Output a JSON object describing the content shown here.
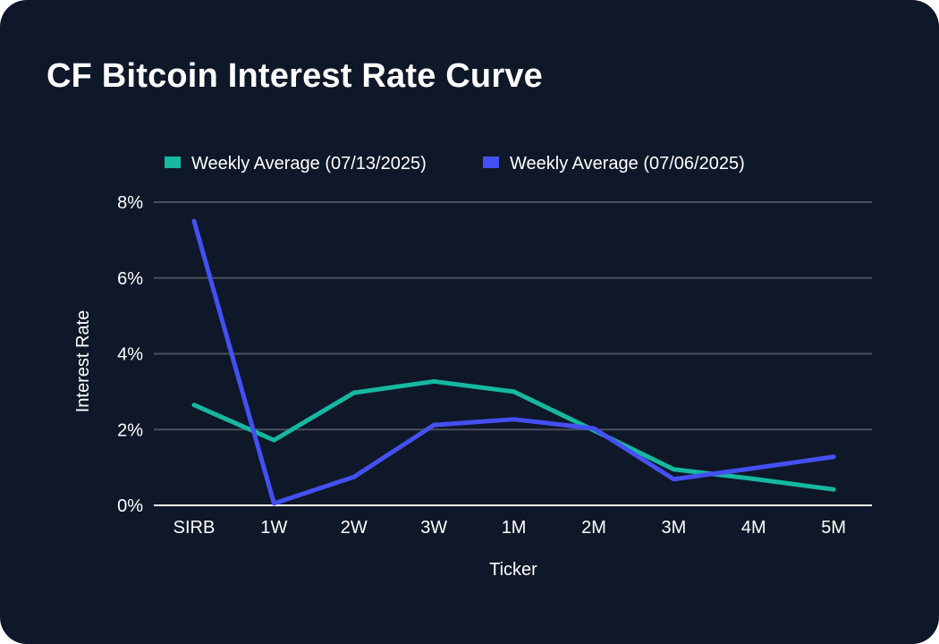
{
  "page": {
    "background": "#0f1829"
  },
  "chart_data": {
    "type": "line",
    "title": "CF Bitcoin Interest Rate Curve",
    "xlabel": "Ticker",
    "ylabel": "Interest Rate",
    "categories": [
      "SIRB",
      "1W",
      "2W",
      "3W",
      "1M",
      "2M",
      "3M",
      "4M",
      "5M"
    ],
    "ylim": [
      0,
      8
    ],
    "yticks": [
      0,
      2,
      4,
      6,
      8
    ],
    "ytick_labels": [
      "0%",
      "2%",
      "4%",
      "6%",
      "8%"
    ],
    "grid": true,
    "legend_position": "top",
    "series": [
      {
        "name": "Weekly Average (07/13/2025)",
        "color": "#16b8a0",
        "values": [
          2.65,
          1.72,
          2.97,
          3.27,
          3.0,
          1.98,
          0.95,
          0.7,
          0.42
        ]
      },
      {
        "name": "Weekly Average (07/06/2025)",
        "color": "#4450f2",
        "values": [
          7.5,
          0.05,
          0.75,
          2.12,
          2.27,
          2.03,
          0.69,
          0.98,
          1.28
        ]
      }
    ]
  }
}
